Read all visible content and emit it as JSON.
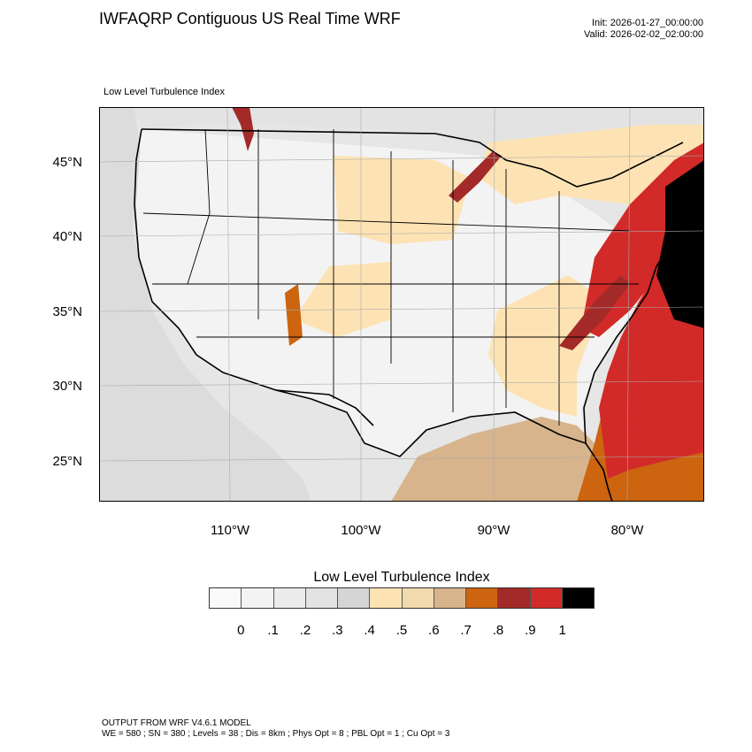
{
  "header": {
    "title": "IWFAQRP Contiguous US Real Time WRF",
    "init": "Init: 2026-01-27_00:00:00",
    "valid": "Valid: 2026-02-02_02:00:00",
    "field_label": "Low Level Turbulence Index"
  },
  "map": {
    "lat_labels": [
      "45°N",
      "40°N",
      "35°N",
      "30°N",
      "25°N"
    ],
    "lon_labels": [
      "110°W",
      "100°W",
      "90°W",
      "80°W"
    ]
  },
  "colorbar": {
    "title": "Low Level Turbulence Index",
    "colors": [
      "#fafafa",
      "#f3f3f3",
      "#ececec",
      "#e3e3e3",
      "#d5d5d5",
      "#fde3b4",
      "#f2d9ae",
      "#d7b48c",
      "#cc6410",
      "#a32a28",
      "#d12a28",
      "#000000"
    ],
    "labels": [
      "0",
      ".1",
      ".2",
      ".3",
      ".4",
      ".5",
      ".6",
      ".7",
      ".8",
      ".9",
      "1"
    ]
  },
  "footer": {
    "line1": "OUTPUT FROM WRF V4.6.1 MODEL",
    "line2": "WE = 580 ; SN = 380 ; Levels = 38 ; Dis = 8km ; Phys Opt = 8 ; PBL Opt = 1 ; Cu Opt = 3"
  }
}
